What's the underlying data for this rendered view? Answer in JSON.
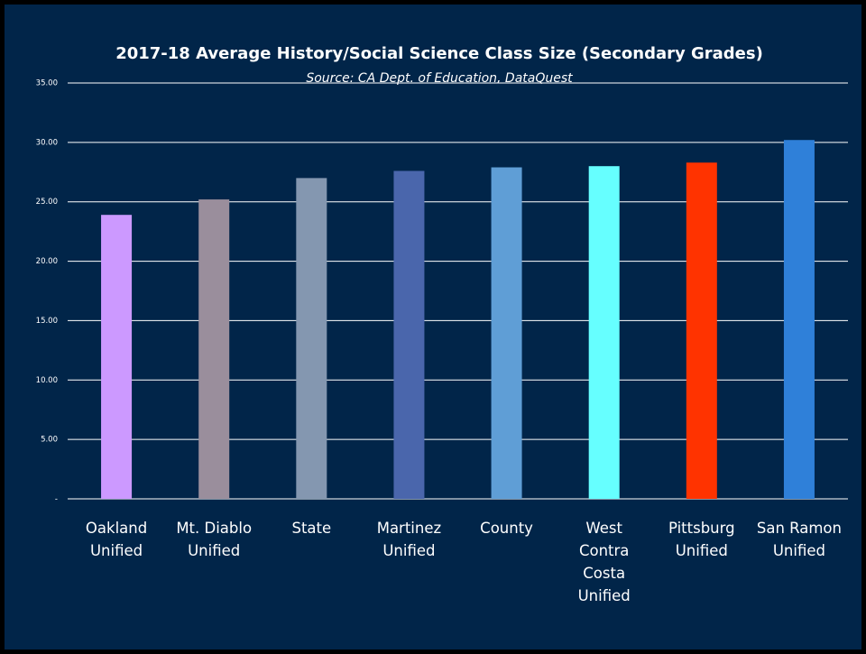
{
  "chart_data": {
    "type": "bar",
    "title": "2017-18 Average History/Social Science Class Size (Secondary Grades)",
    "subtitle": "Source: CA Dept. of Education, DataQuest",
    "categories": [
      "Oakland Unified",
      "Mt. Diablo Unified",
      "State",
      "Martinez Unified",
      "County",
      "West Contra Costa Unified",
      "Pittsburg Unified",
      "San Ramon Unified"
    ],
    "values": [
      23.9,
      25.2,
      27.0,
      27.6,
      27.9,
      28.0,
      28.3,
      30.2
    ],
    "colors": [
      "#cc99ff",
      "#9a8e9c",
      "#8497b0",
      "#4a66ac",
      "#5f9ed6",
      "#66ffff",
      "#ff3300",
      "#2f80d9"
    ],
    "ylim": [
      0,
      35
    ],
    "yticks": [
      {
        "value": 0,
        "label": "-"
      },
      {
        "value": 5,
        "label": "5.00"
      },
      {
        "value": 10,
        "label": "10.00"
      },
      {
        "value": 15,
        "label": "15.00"
      },
      {
        "value": 20,
        "label": "20.00"
      },
      {
        "value": 25,
        "label": "25.00"
      },
      {
        "value": 30,
        "label": "30.00"
      },
      {
        "value": 35,
        "label": "35.00"
      }
    ],
    "grid": true
  }
}
